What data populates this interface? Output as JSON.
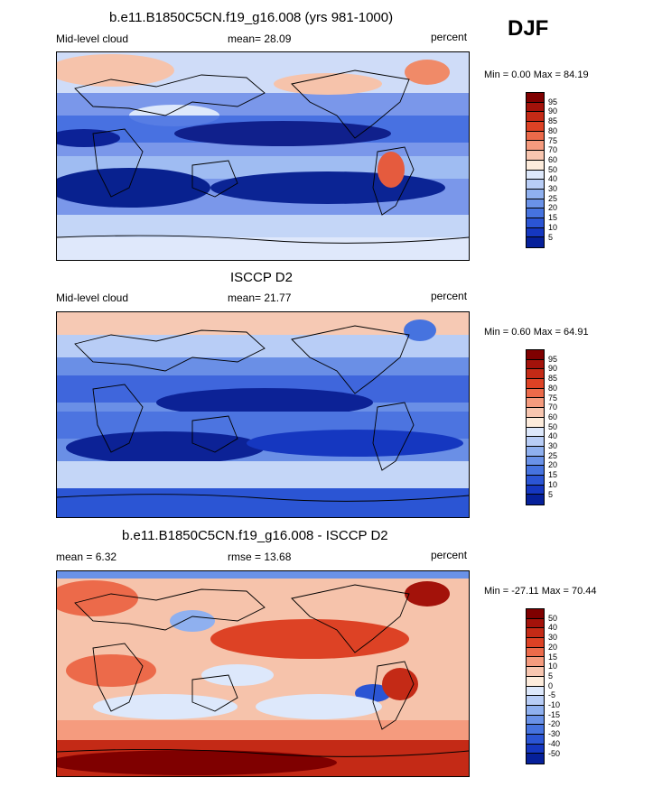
{
  "season": "DJF",
  "panels": [
    {
      "title": "b.e11.B1850C5CN.f19_g16.008 (yrs 981-1000)",
      "left_label": "Mid-level cloud",
      "center_label": "mean=  28.09",
      "right_label": "percent",
      "minmax": "Min =   0.00 Max =  84.19",
      "scale": "abs"
    },
    {
      "title": "ISCCP D2",
      "left_label": "Mid-level cloud",
      "center_label": "mean=  21.77",
      "right_label": "percent",
      "minmax": "Min =   0.60 Max =  64.91",
      "scale": "abs"
    },
    {
      "title": "b.e11.B1850C5CN.f19_g16.008 - ISCCP D2",
      "left_label": "mean =   6.32",
      "center_label": "rmse =  13.68",
      "right_label": "percent",
      "minmax": "Min = -27.11 Max =  70.44",
      "scale": "diff"
    }
  ],
  "colorbars": {
    "abs": {
      "labels": [
        "95",
        "90",
        "85",
        "80",
        "75",
        "70",
        "60",
        "50",
        "40",
        "30",
        "25",
        "20",
        "15",
        "10",
        "5"
      ],
      "colors": [
        "#7f0000",
        "#a3120a",
        "#c42a16",
        "#dd4225",
        "#ec6a4a",
        "#f59b7e",
        "#f8c6b0",
        "#fdecdc",
        "#dde8fb",
        "#b8cdf6",
        "#8fb0ef",
        "#6a92e8",
        "#4673df",
        "#2b55d4",
        "#1537c0",
        "#06209a"
      ]
    },
    "diff": {
      "labels": [
        "50",
        "40",
        "30",
        "20",
        "15",
        "10",
        "5",
        "0",
        "-5",
        "-10",
        "-15",
        "-20",
        "-30",
        "-40",
        "-50"
      ],
      "colors": [
        "#7f0000",
        "#a3120a",
        "#c42a16",
        "#dd4225",
        "#ec6a4a",
        "#f59b7e",
        "#f8c6b0",
        "#fdecdc",
        "#dde8fb",
        "#b8cdf6",
        "#8fb0ef",
        "#6a92e8",
        "#4673df",
        "#2b55d4",
        "#1537c0",
        "#06209a"
      ]
    }
  }
}
